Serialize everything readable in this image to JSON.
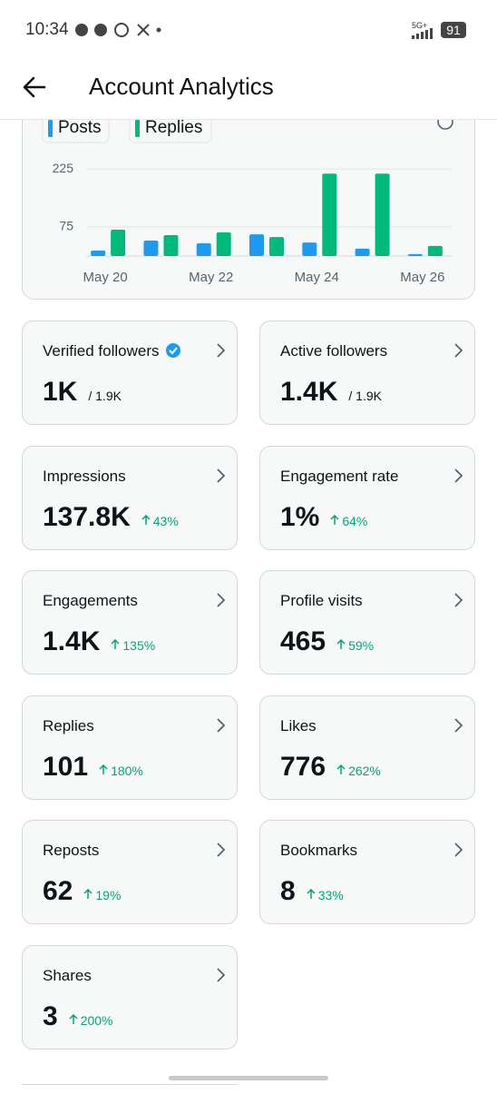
{
  "status_bar": {
    "time": "10:34",
    "network": "5G+",
    "battery": "91"
  },
  "header": {
    "title": "Account Analytics"
  },
  "chart_data": {
    "type": "bar",
    "categories": [
      "May 20",
      null,
      "May 22",
      null,
      "May 24",
      null,
      "May 26"
    ],
    "series": [
      {
        "name": "Posts",
        "color": "#1d9bf0",
        "values": [
          14,
          40,
          33,
          56,
          35,
          19,
          5
        ]
      },
      {
        "name": "Replies",
        "color": "#00ba7c",
        "values": [
          68,
          54,
          61,
          49,
          213,
          213,
          26
        ]
      }
    ],
    "ylim": [
      0,
      230
    ],
    "yticks": [
      75,
      225
    ],
    "grid": true
  },
  "stats": [
    {
      "label": "Verified followers",
      "value": "1K",
      "total": "/ 1.9K",
      "verified_badge": true
    },
    {
      "label": "Active followers",
      "value": "1.4K",
      "total": "/ 1.9K"
    },
    {
      "label": "Impressions",
      "value": "137.8K",
      "change": "43%"
    },
    {
      "label": "Engagement rate",
      "value": "1%",
      "change": "64%"
    },
    {
      "label": "Engagements",
      "value": "1.4K",
      "change": "135%"
    },
    {
      "label": "Profile visits",
      "value": "465",
      "change": "59%"
    },
    {
      "label": "Replies",
      "value": "101",
      "change": "180%"
    },
    {
      "label": "Likes",
      "value": "776",
      "change": "262%"
    },
    {
      "label": "Reposts",
      "value": "62",
      "change": "19%"
    },
    {
      "label": "Bookmarks",
      "value": "8",
      "change": "33%"
    },
    {
      "label": "Shares",
      "value": "3",
      "change": "200%"
    }
  ]
}
